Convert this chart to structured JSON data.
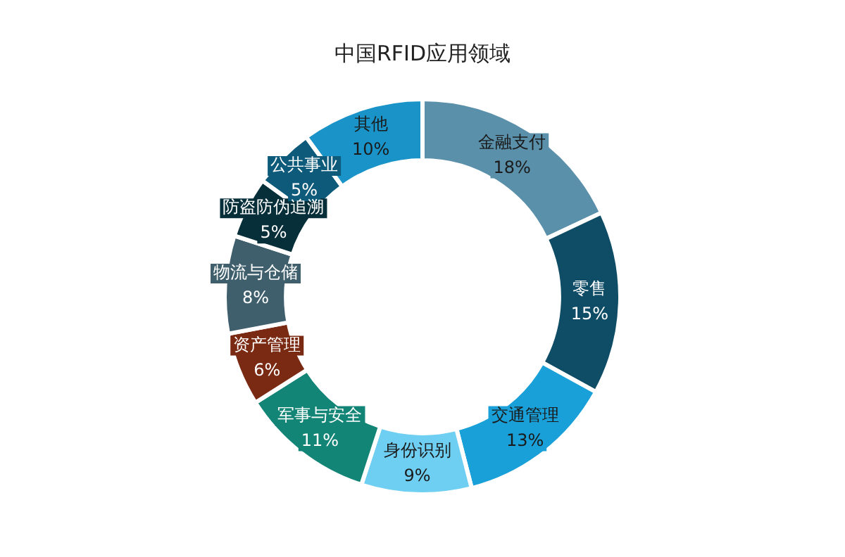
{
  "chart_data": {
    "type": "donut",
    "title": "中国RFID应用领域",
    "categories": [
      "金融支付",
      "零售",
      "交通管理",
      "身份识别",
      "军事与安全",
      "资产管理",
      "物流与仓储",
      "防盗防伪追溯",
      "公共事业",
      "其他"
    ],
    "values": [
      18,
      15,
      13,
      9,
      11,
      6,
      8,
      5,
      5,
      10
    ],
    "value_labels": [
      "18%",
      "15%",
      "13%",
      "9%",
      "11%",
      "6%",
      "8%",
      "5%",
      "5%",
      "10%"
    ],
    "colors": [
      "#5b90aa",
      "#0f4d66",
      "#1aa0d8",
      "#6fcff2",
      "#138577",
      "#7a2a12",
      "#3f5f6d",
      "#062f3a",
      "#0e5a7a",
      "#1a94c8"
    ],
    "legend": false
  }
}
